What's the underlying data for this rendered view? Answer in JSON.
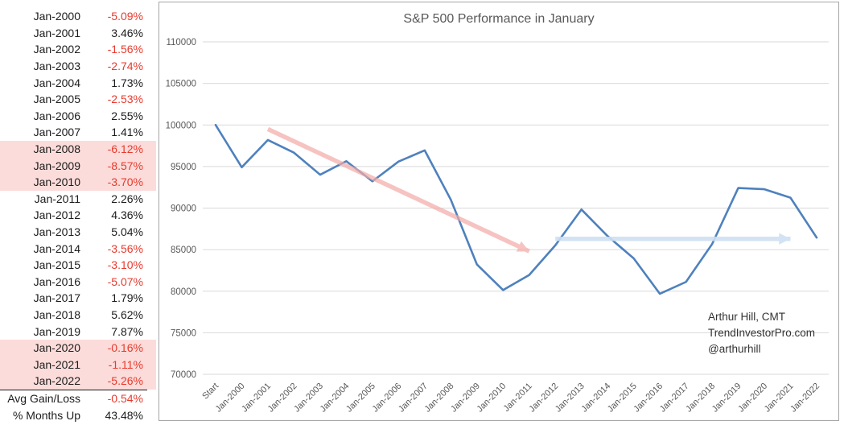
{
  "colors": {
    "series": "#4e81bd",
    "grid": "#d9d9d9",
    "axis-text": "#595959",
    "negative": "#e8392c",
    "highlight": "#fbdcda",
    "panel-border": "#a6a6a6",
    "table-text": "#1c1c1c"
  },
  "table": {
    "rows": [
      {
        "label": "Jan-2000",
        "value": "-5.09%",
        "negative": true,
        "highlight": false
      },
      {
        "label": "Jan-2001",
        "value": "3.46%",
        "negative": false,
        "highlight": false
      },
      {
        "label": "Jan-2002",
        "value": "-1.56%",
        "negative": true,
        "highlight": false
      },
      {
        "label": "Jan-2003",
        "value": "-2.74%",
        "negative": true,
        "highlight": false
      },
      {
        "label": "Jan-2004",
        "value": "1.73%",
        "negative": false,
        "highlight": false
      },
      {
        "label": "Jan-2005",
        "value": "-2.53%",
        "negative": true,
        "highlight": false
      },
      {
        "label": "Jan-2006",
        "value": "2.55%",
        "negative": false,
        "highlight": false
      },
      {
        "label": "Jan-2007",
        "value": "1.41%",
        "negative": false,
        "highlight": false
      },
      {
        "label": "Jan-2008",
        "value": "-6.12%",
        "negative": true,
        "highlight": true
      },
      {
        "label": "Jan-2009",
        "value": "-8.57%",
        "negative": true,
        "highlight": true
      },
      {
        "label": "Jan-2010",
        "value": "-3.70%",
        "negative": true,
        "highlight": true
      },
      {
        "label": "Jan-2011",
        "value": "2.26%",
        "negative": false,
        "highlight": false
      },
      {
        "label": "Jan-2012",
        "value": "4.36%",
        "negative": false,
        "highlight": false
      },
      {
        "label": "Jan-2013",
        "value": "5.04%",
        "negative": false,
        "highlight": false
      },
      {
        "label": "Jan-2014",
        "value": "-3.56%",
        "negative": true,
        "highlight": false
      },
      {
        "label": "Jan-2015",
        "value": "-3.10%",
        "negative": true,
        "highlight": false
      },
      {
        "label": "Jan-2016",
        "value": "-5.07%",
        "negative": true,
        "highlight": false
      },
      {
        "label": "Jan-2017",
        "value": "1.79%",
        "negative": false,
        "highlight": false
      },
      {
        "label": "Jan-2018",
        "value": "5.62%",
        "negative": false,
        "highlight": false
      },
      {
        "label": "Jan-2019",
        "value": "7.87%",
        "negative": false,
        "highlight": false
      },
      {
        "label": "Jan-2020",
        "value": "-0.16%",
        "negative": true,
        "highlight": true
      },
      {
        "label": "Jan-2021",
        "value": "-1.11%",
        "negative": true,
        "highlight": true
      },
      {
        "label": "Jan-2022",
        "value": "-5.26%",
        "negative": true,
        "highlight": true
      }
    ],
    "summary_rows": [
      {
        "label": "Avg Gain/Loss",
        "value": "-0.54%",
        "negative": true,
        "highlight": false
      },
      {
        "label": "% Months Up",
        "value": "43.48%",
        "negative": false,
        "highlight": false
      }
    ]
  },
  "chart_data": {
    "type": "line",
    "title": "S&P 500 Performance in January",
    "xlabel": "",
    "ylabel": "",
    "grid": true,
    "legend": false,
    "ylim": [
      70000,
      110000
    ],
    "ytick_step": 5000,
    "categories": [
      "Start",
      "Jan-2000",
      "Jan-2001",
      "Jan-2002",
      "Jan-2003",
      "Jan-2004",
      "Jan-2005",
      "Jan-2006",
      "Jan-2007",
      "Jan-2008",
      "Jan-2009",
      "Jan-2010",
      "Jan-2011",
      "Jan-2012",
      "Jan-2013",
      "Jan-2014",
      "Jan-2015",
      "Jan-2016",
      "Jan-2017",
      "Jan-2018",
      "Jan-2019",
      "Jan-2020",
      "Jan-2021",
      "Jan-2022"
    ],
    "values": [
      100000,
      94910,
      98194,
      96662,
      94013,
      95640,
      93220,
      95597,
      96945,
      91012,
      83212,
      80134,
      81945,
      85517,
      89827,
      86630,
      83944,
      79688,
      81114,
      85673,
      92415,
      92268,
      91243,
      86444
    ],
    "series_color": "#4e81bd",
    "annotations": {
      "text_lines": [
        "Arthur Hill, CMT",
        "TrendInvestorPro.com",
        "@arthurhill"
      ],
      "arrows": [
        {
          "name": "downtrend-arrow",
          "color": "#f3aba7",
          "opacity": 0.7,
          "from": {
            "category": "Jan-2001",
            "value": 99500
          },
          "to": {
            "category": "Jan-2011",
            "value": 84800
          }
        },
        {
          "name": "sideways-arrow",
          "color": "#cfe0f2",
          "opacity": 0.9,
          "from": {
            "category": "Jan-2012",
            "value": 86300
          },
          "to": {
            "category": "Jan-2021",
            "value": 86300
          }
        }
      ]
    }
  }
}
